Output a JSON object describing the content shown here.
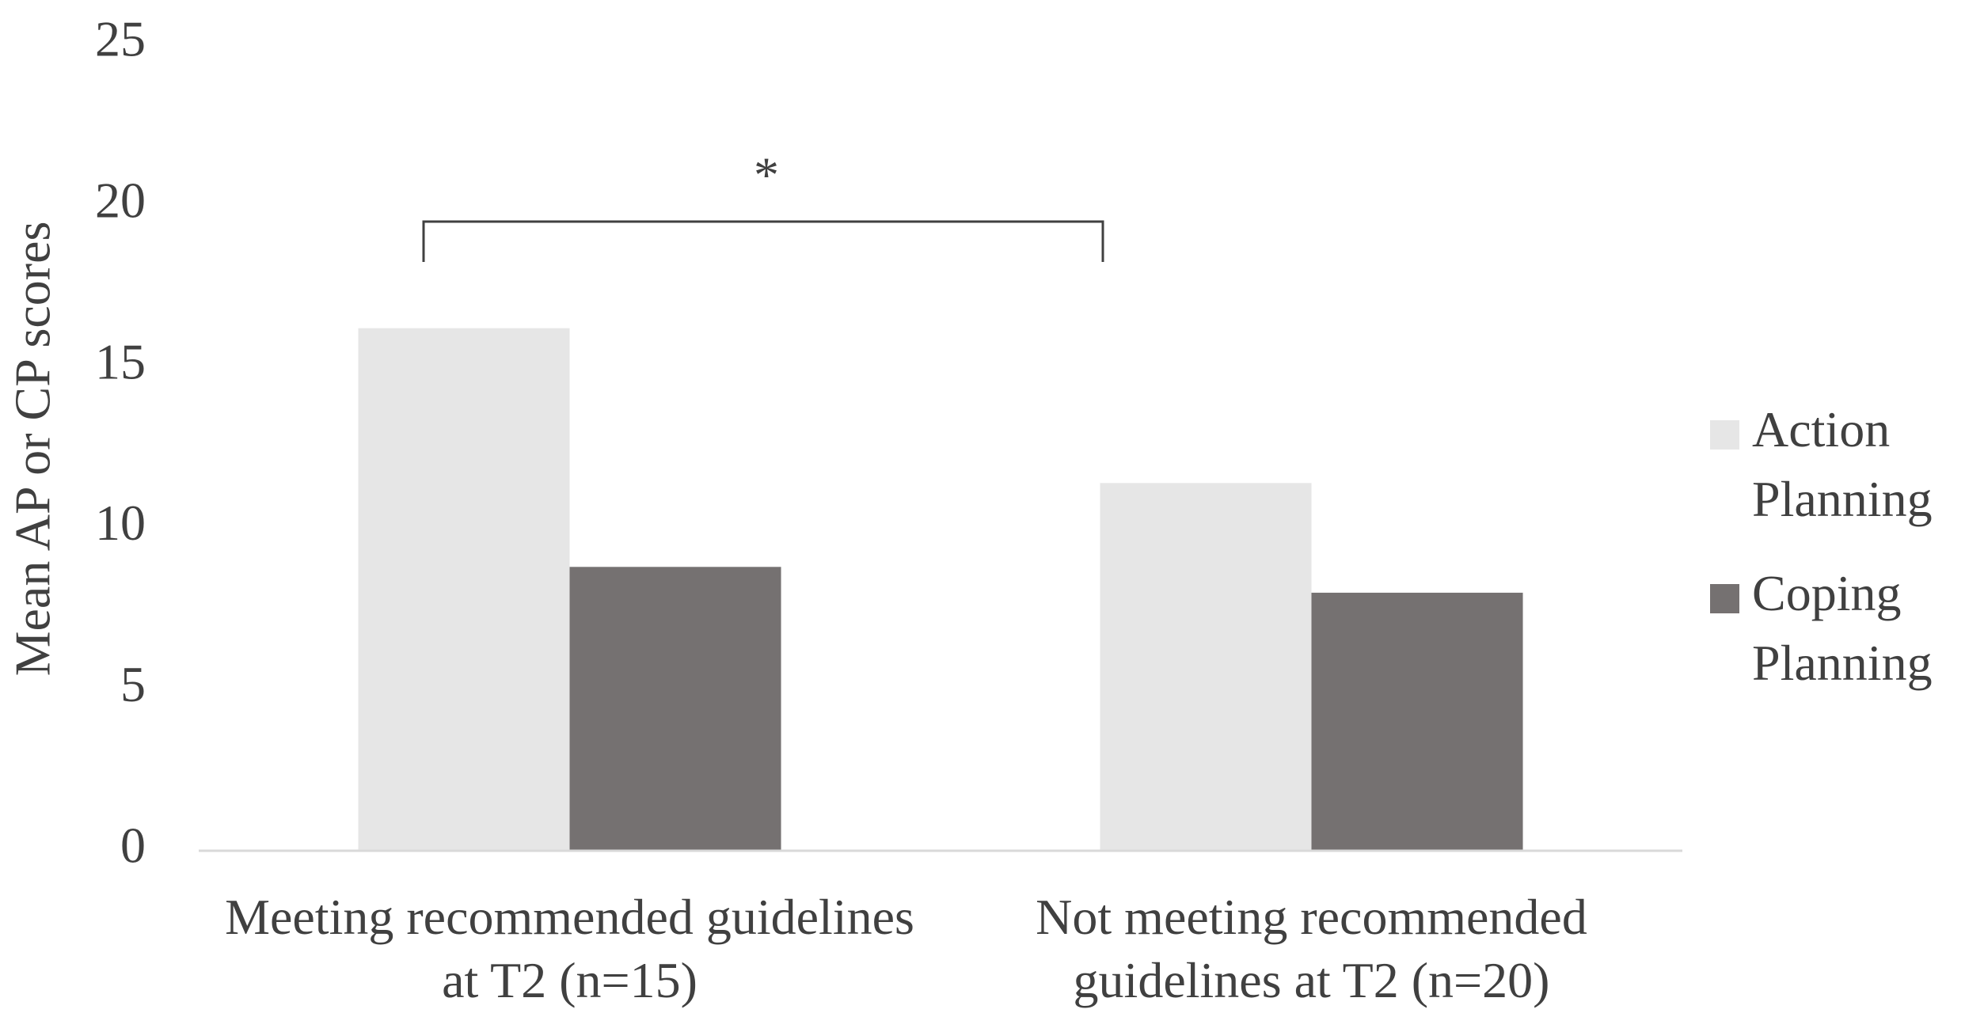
{
  "chart_data": {
    "type": "bar",
    "y_label": "Mean AP or CP scores",
    "categories": [
      "Meeting recommended guidelines at T2 (n=15)",
      "Not meeting recommended guidelines at T2 (n=20)"
    ],
    "series": [
      {
        "name": "Action Planning",
        "color": "#e6e6e6",
        "values": [
          16.2,
          11.4
        ]
      },
      {
        "name": "Coping Planning",
        "color": "#757171",
        "values": [
          8.8,
          8.0
        ]
      }
    ],
    "ylim": [
      0,
      25
    ],
    "yticks": [
      0,
      5,
      10,
      15,
      20,
      25
    ],
    "grid": false,
    "legend": "right",
    "annotation": "*"
  }
}
